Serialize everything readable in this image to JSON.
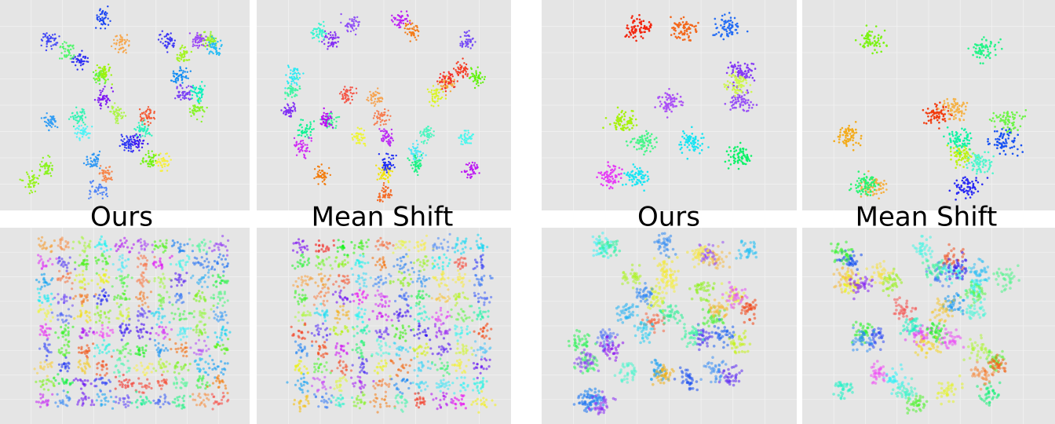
{
  "captions": [
    "Ours",
    "Mean Shift",
    "Ours",
    "Mean Shift"
  ]
}
